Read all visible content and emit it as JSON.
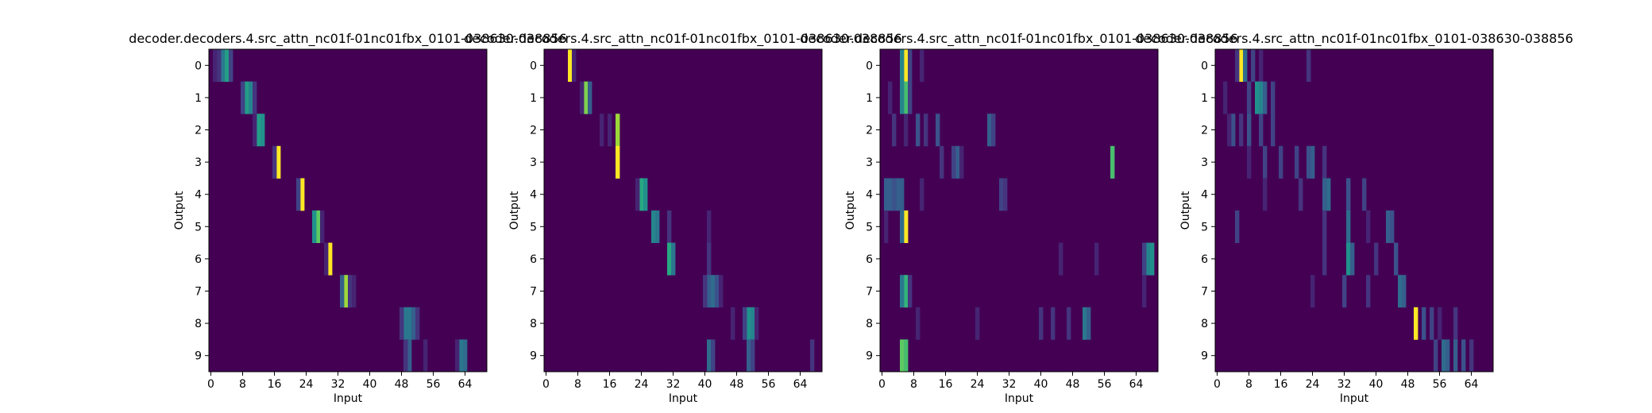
{
  "chart_data": [
    {
      "type": "heatmap",
      "title": "decoder.decoders.4.src_attn_nc01f-01nc01fbx_0101-038630-038856",
      "xlabel": "Input",
      "ylabel": "Output",
      "x_ticks": [
        "0",
        "8",
        "16",
        "24",
        "32",
        "40",
        "48",
        "56",
        "64"
      ],
      "y_ticks": [
        "0",
        "1",
        "2",
        "3",
        "4",
        "5",
        "6",
        "7",
        "8",
        "9"
      ],
      "n_input": 70,
      "n_output": 10,
      "colormap": "viridis",
      "rows": [
        {
          "peaks": [
            [
              3,
              0.4
            ],
            [
              4,
              0.55
            ],
            [
              2,
              0.15
            ],
            [
              5,
              0.2
            ],
            [
              1,
              0.1
            ]
          ]
        },
        {
          "peaks": [
            [
              9,
              0.55
            ],
            [
              10,
              0.45
            ],
            [
              8,
              0.2
            ],
            [
              11,
              0.15
            ]
          ]
        },
        {
          "peaks": [
            [
              12,
              0.55
            ],
            [
              13,
              0.5
            ],
            [
              11,
              0.1
            ]
          ]
        },
        {
          "peaks": [
            [
              17,
              1.0
            ],
            [
              16,
              0.15
            ]
          ]
        },
        {
          "peaks": [
            [
              23,
              1.0
            ],
            [
              22,
              0.2
            ]
          ]
        },
        {
          "peaks": [
            [
              27,
              0.75
            ],
            [
              26,
              0.5
            ],
            [
              28,
              0.1
            ]
          ]
        },
        {
          "peaks": [
            [
              30,
              1.0
            ],
            [
              29,
              0.1
            ]
          ]
        },
        {
          "peaks": [
            [
              34,
              0.85
            ],
            [
              33,
              0.3
            ],
            [
              35,
              0.15
            ],
            [
              36,
              0.1
            ]
          ]
        },
        {
          "peaks": [
            [
              49,
              0.4
            ],
            [
              50,
              0.4
            ],
            [
              51,
              0.3
            ],
            [
              52,
              0.15
            ],
            [
              48,
              0.15
            ]
          ]
        },
        {
          "peaks": [
            [
              63,
              0.4
            ],
            [
              64,
              0.35
            ],
            [
              50,
              0.3
            ],
            [
              49,
              0.15
            ],
            [
              54,
              0.1
            ],
            [
              62,
              0.1
            ]
          ]
        }
      ]
    },
    {
      "type": "heatmap",
      "title": "decoder.decoders.4.src_attn_nc01f-01nc01fbx_0101-038630-038856",
      "xlabel": "Input",
      "ylabel": "Output",
      "x_ticks": [
        "0",
        "8",
        "16",
        "24",
        "32",
        "40",
        "48",
        "56",
        "64"
      ],
      "y_ticks": [
        "0",
        "1",
        "2",
        "3",
        "4",
        "5",
        "6",
        "7",
        "8",
        "9"
      ],
      "n_input": 70,
      "n_output": 10,
      "colormap": "viridis",
      "rows": [
        {
          "peaks": [
            [
              6,
              1.0
            ],
            [
              7,
              0.1
            ]
          ]
        },
        {
          "peaks": [
            [
              10,
              0.8
            ],
            [
              11,
              0.3
            ],
            [
              9,
              0.1
            ]
          ]
        },
        {
          "peaks": [
            [
              18,
              0.85
            ],
            [
              14,
              0.1
            ],
            [
              16,
              0.1
            ]
          ]
        },
        {
          "peaks": [
            [
              18,
              1.0
            ]
          ]
        },
        {
          "peaks": [
            [
              24,
              0.6
            ],
            [
              25,
              0.5
            ],
            [
              23,
              0.1
            ]
          ]
        },
        {
          "peaks": [
            [
              27,
              0.45
            ],
            [
              28,
              0.4
            ],
            [
              31,
              0.15
            ],
            [
              41,
              0.1
            ]
          ]
        },
        {
          "peaks": [
            [
              31,
              0.6
            ],
            [
              32,
              0.4
            ],
            [
              41,
              0.15
            ]
          ]
        },
        {
          "peaks": [
            [
              41,
              0.3
            ],
            [
              42,
              0.35
            ],
            [
              43,
              0.25
            ],
            [
              40,
              0.15
            ],
            [
              44,
              0.1
            ]
          ]
        },
        {
          "peaks": [
            [
              51,
              0.5
            ],
            [
              52,
              0.45
            ],
            [
              50,
              0.2
            ],
            [
              47,
              0.1
            ],
            [
              53,
              0.1
            ]
          ]
        },
        {
          "peaks": [
            [
              41,
              0.35
            ],
            [
              42,
              0.2
            ],
            [
              51,
              0.3
            ],
            [
              52,
              0.2
            ],
            [
              67,
              0.15
            ]
          ]
        }
      ]
    },
    {
      "type": "heatmap",
      "title": "decoder.decoders.4.src_attn_nc01f-01nc01fbx_0101-038630-038856",
      "xlabel": "Input",
      "ylabel": "Output",
      "x_ticks": [
        "0",
        "8",
        "16",
        "24",
        "32",
        "40",
        "48",
        "56",
        "64"
      ],
      "y_ticks": [
        "0",
        "1",
        "2",
        "3",
        "4",
        "5",
        "6",
        "7",
        "8",
        "9"
      ],
      "n_input": 70,
      "n_output": 10,
      "colormap": "viridis",
      "rows": [
        {
          "peaks": [
            [
              6,
              1.0
            ],
            [
              5,
              0.45
            ],
            [
              7,
              0.2
            ],
            [
              10,
              0.1
            ]
          ]
        },
        {
          "peaks": [
            [
              6,
              0.7
            ],
            [
              5,
              0.45
            ],
            [
              7,
              0.2
            ],
            [
              2,
              0.1
            ]
          ]
        },
        {
          "peaks": [
            [
              9,
              0.25
            ],
            [
              14,
              0.25
            ],
            [
              27,
              0.3
            ],
            [
              28,
              0.2
            ],
            [
              3,
              0.15
            ],
            [
              11,
              0.15
            ],
            [
              6,
              0.1
            ]
          ]
        },
        {
          "peaks": [
            [
              58,
              0.7
            ],
            [
              19,
              0.3
            ],
            [
              18,
              0.2
            ],
            [
              15,
              0.15
            ],
            [
              20,
              0.1
            ]
          ]
        },
        {
          "peaks": [
            [
              1,
              0.3
            ],
            [
              2,
              0.3
            ],
            [
              4,
              0.3
            ],
            [
              5,
              0.3
            ],
            [
              3,
              0.25
            ],
            [
              30,
              0.2
            ],
            [
              31,
              0.15
            ],
            [
              10,
              0.1
            ]
          ]
        },
        {
          "peaks": [
            [
              6,
              1.0
            ],
            [
              5,
              0.35
            ],
            [
              1,
              0.1
            ]
          ]
        },
        {
          "peaks": [
            [
              67,
              0.45
            ],
            [
              68,
              0.5
            ],
            [
              66,
              0.2
            ],
            [
              45,
              0.1
            ],
            [
              54,
              0.1
            ]
          ]
        },
        {
          "peaks": [
            [
              6,
              0.65
            ],
            [
              5,
              0.4
            ],
            [
              7,
              0.15
            ],
            [
              66,
              0.1
            ]
          ]
        },
        {
          "peaks": [
            [
              51,
              0.4
            ],
            [
              52,
              0.3
            ],
            [
              40,
              0.15
            ],
            [
              43,
              0.15
            ],
            [
              47,
              0.15
            ],
            [
              9,
              0.1
            ],
            [
              24,
              0.1
            ]
          ]
        },
        {
          "peaks": [
            [
              5,
              0.75
            ],
            [
              6,
              0.7
            ]
          ]
        }
      ]
    },
    {
      "type": "heatmap",
      "title": "decoder.decoders.4.src_attn_nc01f-01nc01fbx_0101-038630-038856",
      "xlabel": "Input",
      "ylabel": "Output",
      "x_ticks": [
        "0",
        "8",
        "16",
        "24",
        "32",
        "40",
        "48",
        "56",
        "64"
      ],
      "y_ticks": [
        "0",
        "1",
        "2",
        "3",
        "4",
        "5",
        "6",
        "7",
        "8",
        "9"
      ],
      "n_input": 70,
      "n_output": 10,
      "colormap": "viridis",
      "rows": [
        {
          "peaks": [
            [
              6,
              1.0
            ],
            [
              7,
              0.35
            ],
            [
              9,
              0.2
            ],
            [
              5,
              0.15
            ],
            [
              11,
              0.1
            ],
            [
              23,
              0.15
            ]
          ]
        },
        {
          "peaks": [
            [
              10,
              0.5
            ],
            [
              11,
              0.45
            ],
            [
              12,
              0.3
            ],
            [
              8,
              0.2
            ],
            [
              14,
              0.2
            ],
            [
              2,
              0.1
            ]
          ]
        },
        {
          "peaks": [
            [
              4,
              0.25
            ],
            [
              8,
              0.25
            ],
            [
              11,
              0.2
            ],
            [
              14,
              0.2
            ],
            [
              6,
              0.15
            ],
            [
              3,
              0.1
            ]
          ]
        },
        {
          "peaks": [
            [
              24,
              0.3
            ],
            [
              23,
              0.25
            ],
            [
              12,
              0.2
            ],
            [
              16,
              0.2
            ],
            [
              20,
              0.2
            ],
            [
              27,
              0.15
            ],
            [
              8,
              0.1
            ]
          ]
        },
        {
          "peaks": [
            [
              28,
              0.35
            ],
            [
              27,
              0.3
            ],
            [
              33,
              0.25
            ],
            [
              37,
              0.2
            ],
            [
              21,
              0.15
            ],
            [
              12,
              0.1
            ]
          ]
        },
        {
          "peaks": [
            [
              33,
              0.35
            ],
            [
              43,
              0.3
            ],
            [
              44,
              0.25
            ],
            [
              5,
              0.2
            ],
            [
              27,
              0.15
            ],
            [
              38,
              0.1
            ]
          ]
        },
        {
          "peaks": [
            [
              33,
              0.5
            ],
            [
              34,
              0.3
            ],
            [
              45,
              0.25
            ],
            [
              40,
              0.15
            ],
            [
              27,
              0.15
            ]
          ]
        },
        {
          "peaks": [
            [
              46,
              0.35
            ],
            [
              47,
              0.3
            ],
            [
              32,
              0.2
            ],
            [
              38,
              0.15
            ],
            [
              24,
              0.1
            ]
          ]
        },
        {
          "peaks": [
            [
              50,
              1.0
            ],
            [
              52,
              0.25
            ],
            [
              54,
              0.2
            ],
            [
              60,
              0.15
            ],
            [
              56,
              0.1
            ]
          ]
        },
        {
          "peaks": [
            [
              57,
              0.35
            ],
            [
              58,
              0.3
            ],
            [
              60,
              0.3
            ],
            [
              62,
              0.25
            ],
            [
              55,
              0.2
            ],
            [
              64,
              0.15
            ]
          ]
        }
      ]
    }
  ]
}
